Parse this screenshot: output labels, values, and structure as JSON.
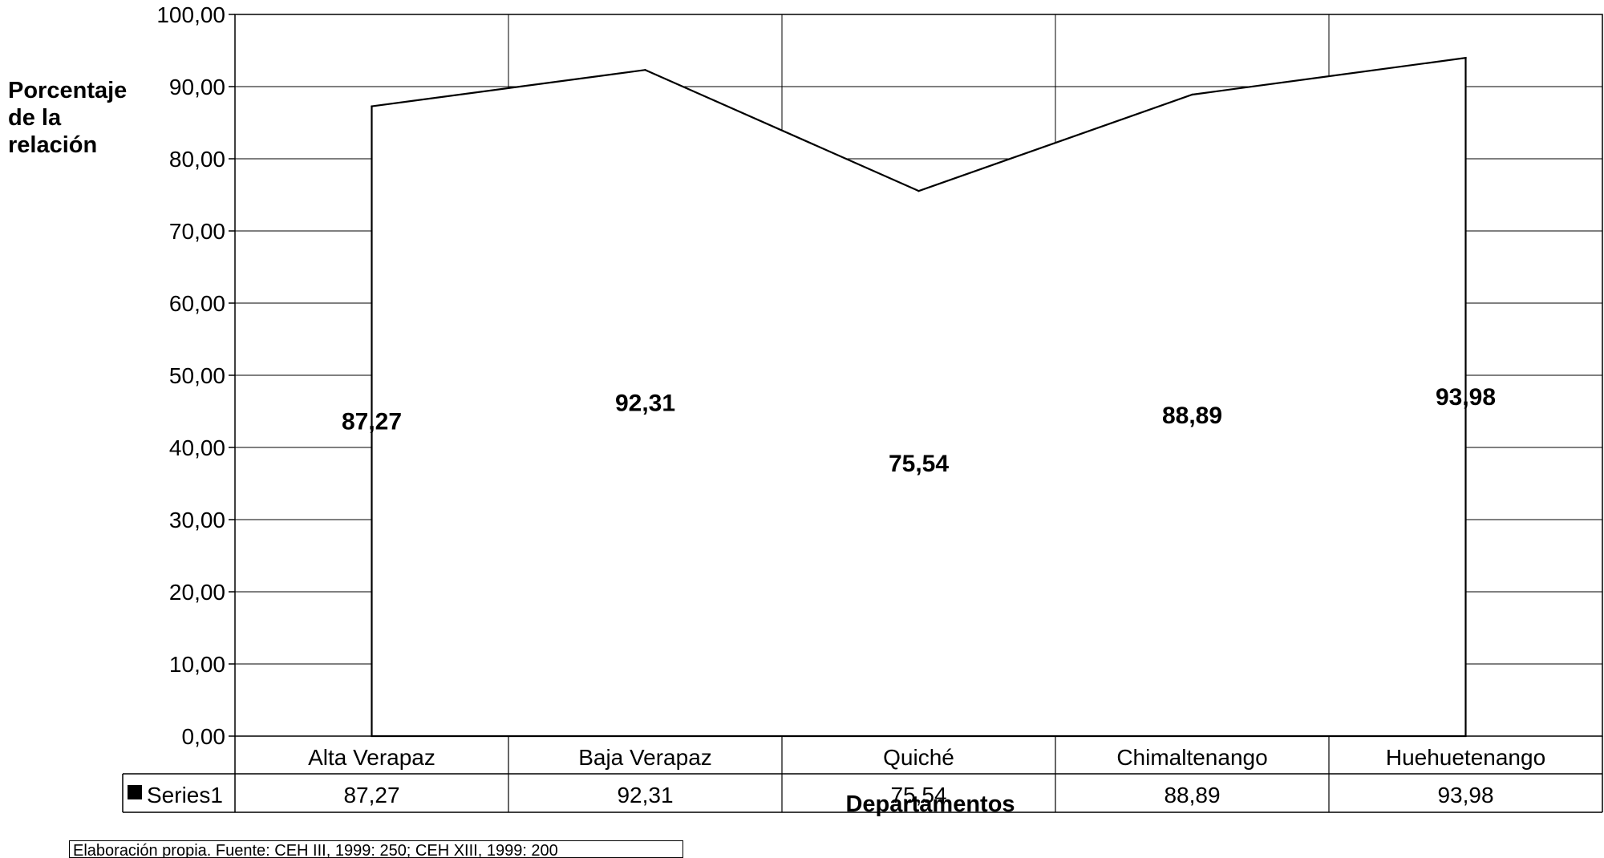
{
  "chart_data": {
    "type": "line",
    "title": "",
    "ylabel_lines": [
      "Porcentaje",
      "de la",
      "relación"
    ],
    "xlabel": "Departamentos",
    "categories": [
      "Alta Verapaz",
      "Baja Verapaz",
      "Quiché",
      "Chimaltenango",
      "Huehuetenango"
    ],
    "series": [
      {
        "name": "Series1",
        "values": [
          87.27,
          92.31,
          75.54,
          88.89,
          93.98
        ],
        "value_labels": [
          "87,27",
          "92,31",
          "75,54",
          "88,89",
          "93,98"
        ]
      }
    ],
    "ylim": [
      0,
      100
    ],
    "yticks": [
      0,
      10,
      20,
      30,
      40,
      50,
      60,
      70,
      80,
      90,
      100
    ],
    "ytick_labels": [
      "0,00",
      "10,00",
      "20,00",
      "30,00",
      "40,00",
      "50,00",
      "60,00",
      "70,00",
      "80,00",
      "90,00",
      "100,00"
    ],
    "grid": true,
    "legend": "data-table-below",
    "line_color": "#000000",
    "fill_color": "#ffffff",
    "grid_color": "#000000",
    "data_table": {
      "series_label": "Series1",
      "values": [
        "87,27",
        "92,31",
        "75,54",
        "88,89",
        "93,98"
      ]
    },
    "footnote": "Elaboración propia. Fuente: CEH III, 1999: 250; CEH XIII, 1999: 200"
  }
}
